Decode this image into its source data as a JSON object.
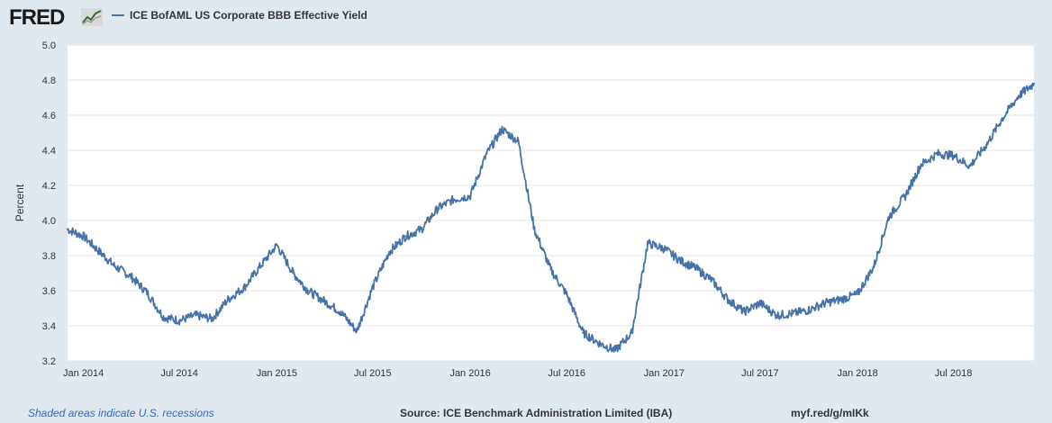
{
  "header": {
    "logo": "FRED",
    "logo_icon": "line-chart-icon"
  },
  "footer": {
    "recession_note": "Shaded areas indicate U.S. recessions",
    "source": "Source: ICE Benchmark Administration Limited (IBA)",
    "short_url": "myf.red/g/mIKk"
  },
  "colors": {
    "background": "#e1e9f0",
    "plot_background": "#ffffff",
    "series_line": "#4572a7",
    "gridline": "#e6e6e6"
  },
  "chart_data": {
    "type": "line",
    "title": "",
    "xlabel": "",
    "ylabel": "Percent",
    "ylim": [
      3.2,
      5.0
    ],
    "yticks": [
      3.2,
      3.4,
      3.6,
      3.8,
      4.0,
      4.2,
      4.4,
      4.6,
      4.8,
      5.0
    ],
    "xticks": [
      "Jan 2014",
      "Jul 2014",
      "Jan 2015",
      "Jul 2015",
      "Jan 2016",
      "Jul 2016",
      "Jan 2017",
      "Jul 2017",
      "Jan 2018",
      "Jul 2018"
    ],
    "xlim": [
      "2013-12-02",
      "2018-11-30"
    ],
    "grid": "horizontal",
    "series": [
      {
        "name": "ICE BofAML US Corporate BBB Effective Yield",
        "x": [
          "2013-12-02",
          "2014-01-01",
          "2014-02-01",
          "2014-03-01",
          "2014-04-01",
          "2014-05-01",
          "2014-06-01",
          "2014-07-01",
          "2014-08-01",
          "2014-09-01",
          "2014-10-01",
          "2014-11-01",
          "2014-12-01",
          "2015-01-01",
          "2015-02-01",
          "2015-03-01",
          "2015-04-01",
          "2015-05-01",
          "2015-06-01",
          "2015-07-01",
          "2015-08-01",
          "2015-09-01",
          "2015-10-01",
          "2015-11-01",
          "2015-12-01",
          "2016-01-01",
          "2016-02-01",
          "2016-03-01",
          "2016-04-01",
          "2016-05-01",
          "2016-06-01",
          "2016-07-01",
          "2016-08-01",
          "2016-09-01",
          "2016-10-01",
          "2016-11-01",
          "2016-12-01",
          "2017-01-01",
          "2017-02-01",
          "2017-03-01",
          "2017-04-01",
          "2017-05-01",
          "2017-06-01",
          "2017-07-01",
          "2017-08-01",
          "2017-09-01",
          "2017-10-01",
          "2017-11-01",
          "2017-12-01",
          "2018-01-01",
          "2018-02-01",
          "2018-03-01",
          "2018-04-01",
          "2018-05-01",
          "2018-06-01",
          "2018-07-01",
          "2018-08-01",
          "2018-09-01",
          "2018-10-01",
          "2018-11-01",
          "2018-11-30"
        ],
        "values": [
          3.95,
          3.91,
          3.82,
          3.74,
          3.68,
          3.59,
          3.45,
          3.43,
          3.46,
          3.44,
          3.55,
          3.62,
          3.74,
          3.86,
          3.7,
          3.6,
          3.54,
          3.48,
          3.37,
          3.62,
          3.82,
          3.91,
          3.95,
          4.07,
          4.12,
          4.14,
          4.38,
          4.52,
          4.45,
          3.95,
          3.72,
          3.58,
          3.36,
          3.3,
          3.26,
          3.36,
          3.87,
          3.84,
          3.77,
          3.73,
          3.66,
          3.55,
          3.48,
          3.53,
          3.46,
          3.47,
          3.49,
          3.53,
          3.55,
          3.58,
          3.74,
          4.02,
          4.14,
          4.32,
          4.38,
          4.37,
          4.31,
          4.43,
          4.58,
          4.71,
          4.78
        ]
      }
    ]
  }
}
